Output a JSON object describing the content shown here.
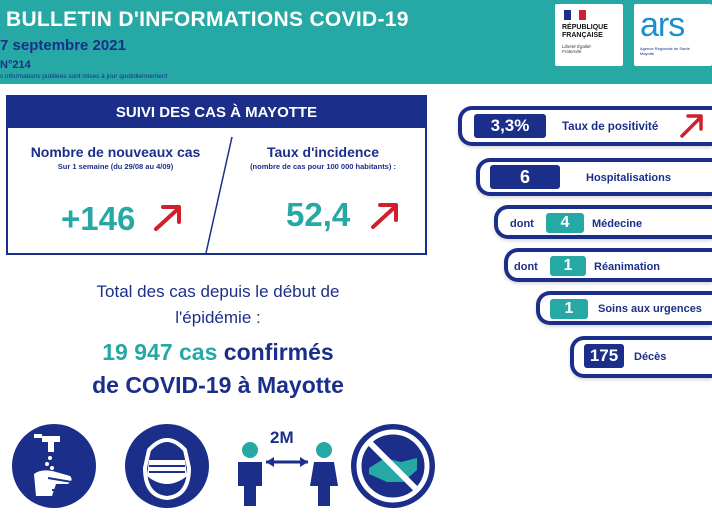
{
  "header": {
    "title": "BULLETIN D'INFORMATIONS COVID-19",
    "date": "7 septembre 2021",
    "number": "N°214",
    "note": "s informations publiées sont mises à jour quotidiennement"
  },
  "logos": {
    "rf_name": "RÉPUBLIQUE FRANÇAISE",
    "rf_motto": "Liberté Égalité Fraternité",
    "ars_name": "ars",
    "ars_sub": "Agence Régionale de Santé Mayotte"
  },
  "suivi": {
    "title": "SUIVI DES CAS À MAYOTTE",
    "new_cases_title": "Nombre de nouveaux cas",
    "new_cases_sub": "Sur 1 semaine (du 29/08 au 4/09)",
    "new_cases_value": "+146",
    "incidence_title": "Taux d'incidence",
    "incidence_sub": "(nombre de cas pour 100 000 habitants) :",
    "incidence_value": "52,4"
  },
  "total": {
    "line1": "Total des cas depuis le début de",
    "line2": "l'épidémie :",
    "count": "19 947 cas",
    "confirmed": "confirmés",
    "line4": "de COVID-19 à Mayotte"
  },
  "stats": {
    "positivity": {
      "value": "3,3%",
      "label": "Taux de positivité"
    },
    "hosp": {
      "value": "6",
      "label": "Hospitalisations"
    },
    "medecine": {
      "prefix": "dont",
      "value": "4",
      "label": "Médecine"
    },
    "reanimation": {
      "prefix": "dont",
      "value": "1",
      "label": "Réanimation"
    },
    "urgences": {
      "value": "1",
      "label": "Soins aux urgences"
    },
    "deces": {
      "value": "175",
      "label": "Décès"
    }
  },
  "gestures": {
    "distance_label": "2M"
  },
  "colors": {
    "navy": "#1b2f8a",
    "teal": "#26a8a4",
    "red": "#d0202e"
  },
  "icons": [
    "arrow-up-right-icon",
    "hand-washing-icon",
    "mask-icon",
    "distance-icon",
    "no-handshake-icon"
  ]
}
